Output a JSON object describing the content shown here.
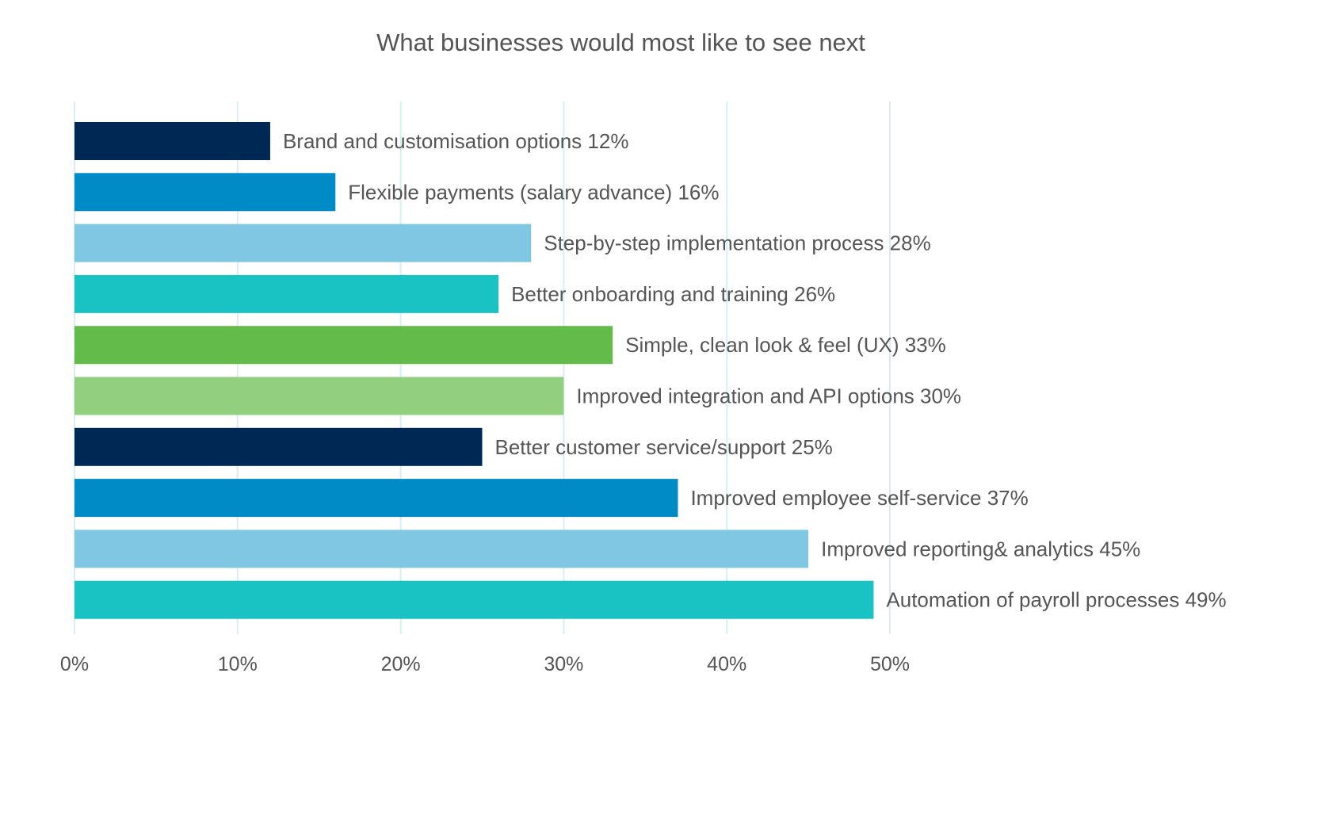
{
  "chart_data": {
    "type": "bar",
    "orientation": "horizontal",
    "title": "What businesses would most like to see next",
    "xlabel": "",
    "ylabel": "",
    "xlim": [
      0,
      50
    ],
    "x_ticks": [
      "0%",
      "10%",
      "20%",
      "30%",
      "40%",
      "50%"
    ],
    "x_tick_values": [
      0,
      10,
      20,
      30,
      40,
      50
    ],
    "grid": true,
    "legend": "none",
    "bars": [
      {
        "category": "Brand and customisation options",
        "value": 12,
        "label": "Brand and customisation options 12%",
        "color": "#002855"
      },
      {
        "category": "Flexible payments (salary advance)",
        "value": 16,
        "label": "Flexible payments (salary advance) 16%",
        "color": "#008BC7"
      },
      {
        "category": "Step-by-step implementation process",
        "value": 28,
        "label": "Step-by-step implementation process 28%",
        "color": "#7FC7E3"
      },
      {
        "category": "Better onboarding and training",
        "value": 26,
        "label": "Better onboarding and training 26%",
        "color": "#1AC3C3"
      },
      {
        "category": "Simple, clean look & feel (UX)",
        "value": 33,
        "label": "Simple, clean look & feel (UX) 33%",
        "color": "#63BB4A"
      },
      {
        "category": "Improved integration and API options",
        "value": 30,
        "label": "Improved integration and API options 30%",
        "color": "#92CF7E"
      },
      {
        "category": "Better customer service/support",
        "value": 25,
        "label": "Better customer service/support 25%",
        "color": "#002855"
      },
      {
        "category": "Improved employee self-service",
        "value": 37,
        "label": "Improved employee self-service 37%",
        "color": "#008BC7"
      },
      {
        "category": "Improved reporting& analytics",
        "value": 45,
        "label": "Improved reporting& analytics 45%",
        "color": "#7FC7E3"
      },
      {
        "category": "Automation of payroll processes",
        "value": 49,
        "label": "Automation of payroll processes 49%",
        "color": "#1AC3C3"
      }
    ],
    "grid_color": "#D6EEF4"
  }
}
